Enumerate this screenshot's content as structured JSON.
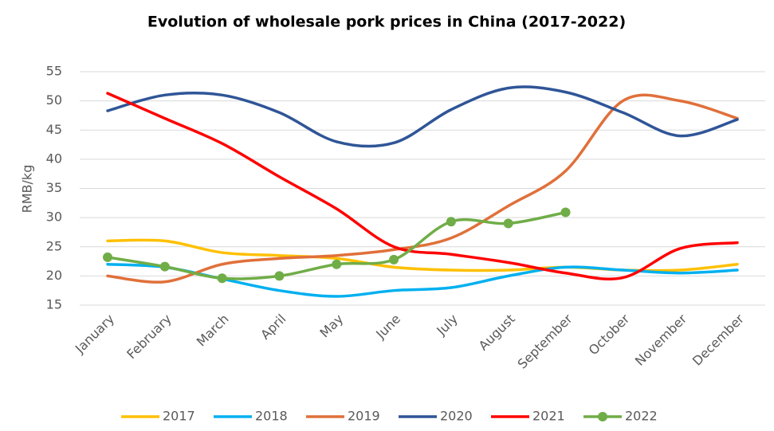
{
  "chart_data": {
    "type": "line",
    "title": "Evolution of wholesale pork prices in China (2017-2022)",
    "y_label": "RMB/kg",
    "categories": [
      "January",
      "February",
      "March",
      "April",
      "May",
      "June",
      "July",
      "August",
      "September",
      "October",
      "November",
      "December"
    ],
    "ylim": [
      15,
      55
    ],
    "yticks": [
      15,
      20,
      25,
      30,
      35,
      40,
      45,
      50,
      55
    ],
    "grid": true,
    "legend": "bottom",
    "smooth": true,
    "series": [
      {
        "name": "2017",
        "color": "#FFC000",
        "values": [
          26,
          26,
          24,
          23.5,
          23,
          21.5,
          21,
          21,
          21.5,
          21,
          21,
          22
        ]
      },
      {
        "name": "2018",
        "color": "#00B0F0",
        "values": [
          22,
          21.5,
          19.5,
          17.5,
          16.5,
          17.5,
          18,
          20,
          21.5,
          21,
          20.5,
          21
        ]
      },
      {
        "name": "2019",
        "color": "#E0703A",
        "values": [
          20,
          19,
          22,
          23,
          23.5,
          24.5,
          26.5,
          32,
          38,
          50,
          50,
          47
        ]
      },
      {
        "name": "2020",
        "color": "#2F5597",
        "values": [
          48.3,
          51,
          51,
          48,
          43,
          42.8,
          48.5,
          52.2,
          51.5,
          48,
          44,
          46.8
        ]
      },
      {
        "name": "2021",
        "color": "#FF0000",
        "values": [
          51.3,
          47,
          42.7,
          37,
          31.5,
          25,
          23.7,
          22.3,
          20.5,
          19.7,
          24.7,
          25.7
        ]
      },
      {
        "name": "2022",
        "color": "#70AD47",
        "markers": true,
        "values": [
          23.2,
          21.6,
          19.6,
          20,
          22,
          22.8,
          29.3,
          29,
          30.9,
          null,
          null,
          null
        ]
      }
    ]
  }
}
